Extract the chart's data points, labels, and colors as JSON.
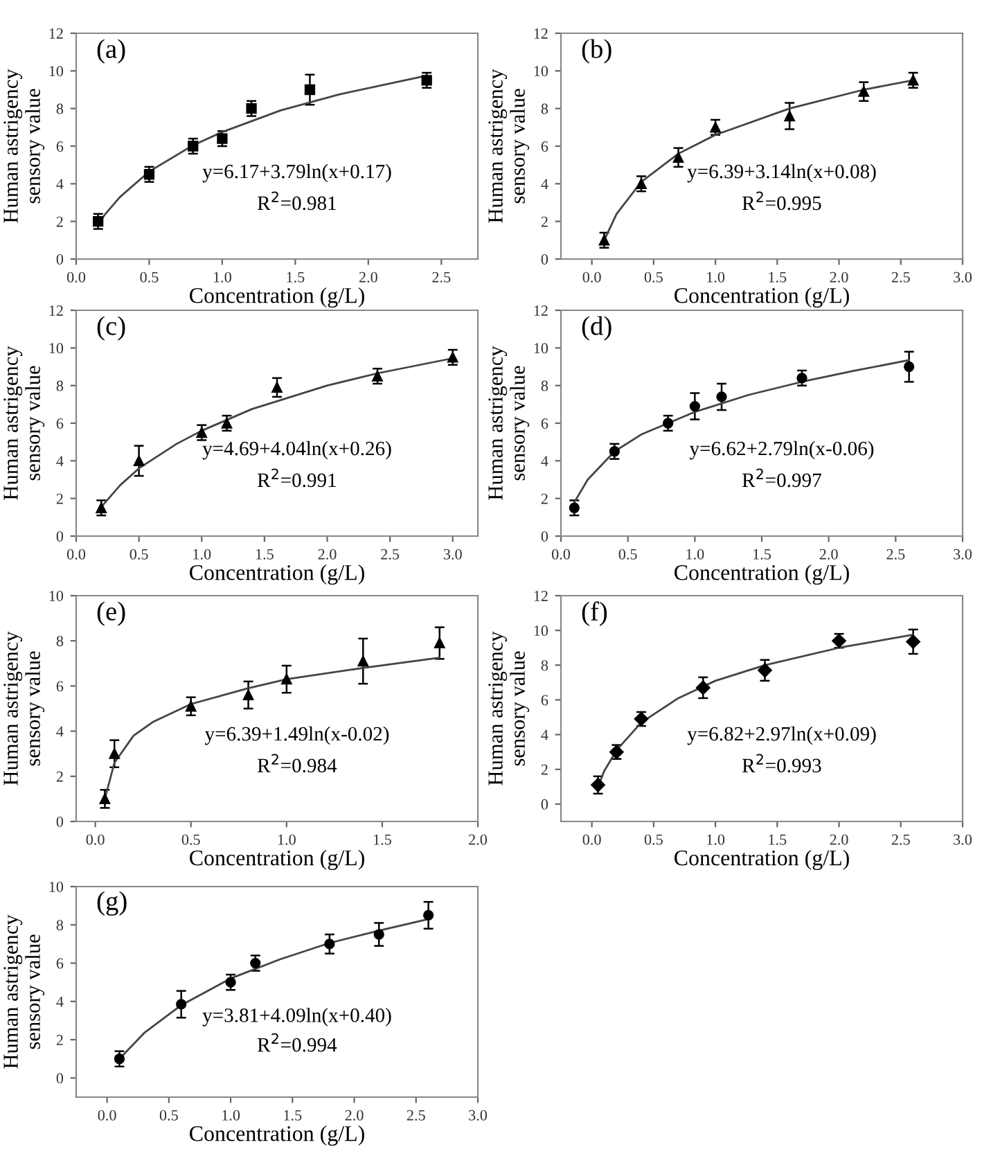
{
  "chart_data": [
    {
      "type": "scatter",
      "xlabel": "Concentration (g/L)",
      "ylabel": "Human astrigency\nsensory value",
      "xlim": [
        0.0,
        2.75
      ],
      "xticks": [
        {
          "value": 0,
          "label": "0.0"
        },
        0.5,
        {
          "value": 1,
          "label": "1.0"
        },
        1.5,
        {
          "value": 2,
          "label": "2.0"
        },
        2.5
      ],
      "ylim": [
        0,
        12
      ],
      "yticks": [
        0,
        2,
        4,
        6,
        8,
        10,
        12
      ],
      "grid": false,
      "annotations": [
        "(a)",
        "y=6.17+3.79ln(x+0.17)",
        "R$^{2}$=0.981"
      ],
      "series": [
        {
          "marker": "square",
          "color": "#000000",
          "x": [
            0.15,
            0.5,
            0.8,
            1.0,
            1.2,
            1.6,
            2.4
          ],
          "values": [
            2.0,
            4.5,
            6.0,
            6.4,
            8.0,
            9.0,
            9.5
          ],
          "errors": [
            0.4,
            0.4,
            0.4,
            0.4,
            0.4,
            0.8,
            0.4
          ]
        },
        {
          "type": "line",
          "marker": "none",
          "color": "#444444",
          "x": [
            0.15,
            0.2,
            0.3,
            0.5,
            0.8,
            1.0,
            1.4,
            1.8,
            2.4
          ],
          "values": [
            1.85,
            2.4,
            3.3,
            4.65,
            6.05,
            6.75,
            7.9,
            8.75,
            9.75
          ]
        }
      ]
    },
    {
      "type": "scatter",
      "xlabel": "Concentration (g/L)",
      "ylabel": "Human astrigency\nsensory value",
      "xlim": [
        -0.25,
        3.0
      ],
      "xticks": [
        {
          "value": 0,
          "label": "0.0"
        },
        0.5,
        {
          "value": 1,
          "label": "1.0"
        },
        1.5,
        {
          "value": 2,
          "label": "2.0"
        },
        2.5,
        {
          "value": 3,
          "label": "3.0"
        }
      ],
      "ylim": [
        0,
        12
      ],
      "yticks": [
        0,
        2,
        4,
        6,
        8,
        10,
        12
      ],
      "grid": false,
      "annotations": [
        "(b)",
        "y=6.39+3.14ln(x+0.08)",
        "R$^{2}$=0.995"
      ],
      "series": [
        {
          "marker": "triangle",
          "color": "#000000",
          "x": [
            0.1,
            0.4,
            0.7,
            1.0,
            1.6,
            2.2,
            2.6
          ],
          "values": [
            1.0,
            4.0,
            5.4,
            7.0,
            7.6,
            8.9,
            9.5
          ],
          "errors": [
            0.4,
            0.4,
            0.5,
            0.4,
            0.7,
            0.5,
            0.4
          ]
        },
        {
          "type": "line",
          "marker": "none",
          "color": "#444444",
          "x": [
            0.1,
            0.2,
            0.4,
            0.7,
            1.0,
            1.6,
            2.2,
            2.6
          ],
          "values": [
            1.0,
            2.4,
            4.1,
            5.6,
            6.6,
            8.0,
            9.0,
            9.5
          ]
        }
      ]
    },
    {
      "type": "scatter",
      "xlabel": "Concentration (g/L)",
      "ylabel": "Human astrigency\nsensory value",
      "xlim": [
        0.0,
        3.2
      ],
      "xticks": [
        {
          "value": 0,
          "label": "0.0"
        },
        0.5,
        {
          "value": 1,
          "label": "1.0"
        },
        1.5,
        {
          "value": 2,
          "label": "2.0"
        },
        2.5,
        {
          "value": 3,
          "label": "3.0"
        }
      ],
      "ylim": [
        0,
        12
      ],
      "yticks": [
        0,
        2,
        4,
        6,
        8,
        10,
        12
      ],
      "grid": false,
      "annotations": [
        "(c)",
        "y=4.69+4.04ln(x+0.26)",
        "R$^{2}$=0.991"
      ],
      "series": [
        {
          "marker": "triangle",
          "color": "#000000",
          "x": [
            0.2,
            0.5,
            1.0,
            1.2,
            1.6,
            2.4,
            3.0
          ],
          "values": [
            1.5,
            4.0,
            5.5,
            6.0,
            7.9,
            8.5,
            9.5
          ],
          "errors": [
            0.4,
            0.8,
            0.4,
            0.4,
            0.5,
            0.4,
            0.4
          ]
        },
        {
          "type": "line",
          "marker": "none",
          "color": "#444444",
          "x": [
            0.2,
            0.35,
            0.5,
            0.8,
            1.0,
            1.4,
            2.0,
            2.4,
            3.0
          ],
          "values": [
            1.55,
            2.7,
            3.6,
            4.9,
            5.6,
            6.75,
            8.0,
            8.65,
            9.45
          ]
        }
      ]
    },
    {
      "type": "scatter",
      "xlabel": "Concentration (g/L)",
      "ylabel": "Human astrigency\nsensory value",
      "xlim": [
        0.0,
        3.0
      ],
      "xticks": [
        {
          "value": 0,
          "label": "0.0"
        },
        0.5,
        {
          "value": 1,
          "label": "1.0"
        },
        1.5,
        {
          "value": 2,
          "label": "2.0"
        },
        2.5,
        {
          "value": 3,
          "label": "3.0"
        }
      ],
      "ylim": [
        0,
        12
      ],
      "yticks": [
        0,
        2,
        4,
        6,
        8,
        10,
        12
      ],
      "grid": false,
      "annotations": [
        "(d)",
        "y=6.62+2.79ln(x-0.06)",
        "R$^{2}$=0.997"
      ],
      "series": [
        {
          "marker": "circle",
          "color": "#000000",
          "x": [
            0.1,
            0.4,
            0.8,
            1.0,
            1.2,
            1.8,
            2.6
          ],
          "values": [
            1.5,
            4.5,
            6.0,
            6.9,
            7.4,
            8.4,
            9.0
          ],
          "errors": [
            0.4,
            0.4,
            0.4,
            0.7,
            0.7,
            0.4,
            0.8
          ]
        },
        {
          "type": "line",
          "marker": "none",
          "color": "#444444",
          "x": [
            0.1,
            0.2,
            0.4,
            0.6,
            0.8,
            1.0,
            1.4,
            1.8,
            2.2,
            2.6
          ],
          "values": [
            1.8,
            3.0,
            4.5,
            5.4,
            6.0,
            6.6,
            7.5,
            8.2,
            8.8,
            9.35
          ]
        }
      ]
    },
    {
      "type": "scatter",
      "xlabel": "Concentration (g/L)",
      "ylabel": "Human astrigency\nsensory value",
      "xlim": [
        -0.1,
        2.0
      ],
      "xticks": [
        {
          "value": 0,
          "label": "0.0"
        },
        0.5,
        {
          "value": 1,
          "label": "1.0"
        },
        1.5,
        {
          "value": 2,
          "label": "2.0"
        }
      ],
      "ylim": [
        0,
        10
      ],
      "yticks": [
        0,
        2,
        4,
        6,
        8,
        10
      ],
      "grid": false,
      "annotations": [
        "(e)",
        "y=6.39+1.49ln(x-0.02)",
        "R$^{2}$=0.984"
      ],
      "series": [
        {
          "marker": "triangle",
          "color": "#000000",
          "x": [
            0.05,
            0.1,
            0.5,
            0.8,
            1.0,
            1.4,
            1.8
          ],
          "values": [
            1.0,
            3.0,
            5.1,
            5.6,
            6.3,
            7.1,
            7.9
          ],
          "errors": [
            0.4,
            0.6,
            0.4,
            0.6,
            0.6,
            1.0,
            0.7
          ]
        },
        {
          "type": "line",
          "marker": "none",
          "color": "#444444",
          "x": [
            0.05,
            0.1,
            0.2,
            0.3,
            0.5,
            0.8,
            1.0,
            1.4,
            1.8
          ],
          "values": [
            1.0,
            2.6,
            3.8,
            4.4,
            5.2,
            5.9,
            6.3,
            6.8,
            7.25
          ]
        }
      ]
    },
    {
      "type": "scatter",
      "xlabel": "Concentration (g/L)",
      "ylabel": "Human astrigency\nsensory value",
      "xlim": [
        -0.25,
        3.0
      ],
      "xticks": [
        {
          "value": 0,
          "label": "0.0"
        },
        0.5,
        {
          "value": 1,
          "label": "1.0"
        },
        1.5,
        {
          "value": 2,
          "label": "2.0"
        },
        2.5,
        {
          "value": 3,
          "label": "3.0"
        }
      ],
      "ylim": [
        -1,
        12
      ],
      "yticks": [
        0,
        2,
        4,
        6,
        8,
        10,
        12
      ],
      "grid": false,
      "annotations": [
        "(f)",
        "y=6.82+2.97ln(x+0.09)",
        "R$^{2}$=0.993"
      ],
      "series": [
        {
          "marker": "diamond",
          "color": "#000000",
          "x": [
            0.05,
            0.2,
            0.4,
            0.9,
            1.4,
            2.0,
            2.6
          ],
          "values": [
            1.1,
            3.0,
            4.9,
            6.7,
            7.7,
            9.4,
            9.35
          ],
          "errors": [
            0.5,
            0.4,
            0.4,
            0.6,
            0.6,
            0.4,
            0.7
          ]
        },
        {
          "type": "line",
          "marker": "none",
          "color": "#444444",
          "x": [
            0.05,
            0.1,
            0.2,
            0.4,
            0.7,
            1.0,
            1.4,
            2.0,
            2.6
          ],
          "values": [
            1.0,
            1.9,
            3.1,
            4.7,
            6.1,
            7.1,
            8.0,
            9.0,
            9.75
          ]
        }
      ]
    },
    {
      "type": "scatter",
      "xlabel": "Concentration (g/L)",
      "ylabel": "Human astrigency\nsensory value",
      "xlim": [
        -0.25,
        3.0
      ],
      "xticks": [
        {
          "value": 0,
          "label": "0.0"
        },
        0.5,
        {
          "value": 1,
          "label": "1.0"
        },
        1.5,
        {
          "value": 2,
          "label": "2.0"
        },
        2.5,
        {
          "value": 3,
          "label": "3.0"
        }
      ],
      "ylim": [
        -1,
        10
      ],
      "yticks": [
        0,
        2,
        4,
        6,
        8,
        10
      ],
      "grid": false,
      "annotations": [
        "(g)",
        "y=3.81+4.09ln(x+0.40)",
        "R$^{2}$=0.994"
      ],
      "series": [
        {
          "marker": "circle",
          "color": "#000000",
          "x": [
            0.1,
            0.6,
            1.0,
            1.2,
            1.8,
            2.2,
            2.6
          ],
          "values": [
            1.0,
            3.85,
            5.0,
            6.0,
            7.0,
            7.5,
            8.5
          ],
          "errors": [
            0.4,
            0.7,
            0.4,
            0.4,
            0.5,
            0.6,
            0.7
          ]
        },
        {
          "type": "line",
          "marker": "none",
          "color": "#444444",
          "x": [
            0.1,
            0.3,
            0.6,
            1.0,
            1.4,
            1.8,
            2.2,
            2.6
          ],
          "values": [
            1.0,
            2.35,
            3.8,
            5.2,
            6.2,
            7.05,
            7.7,
            8.3
          ]
        }
      ]
    }
  ]
}
